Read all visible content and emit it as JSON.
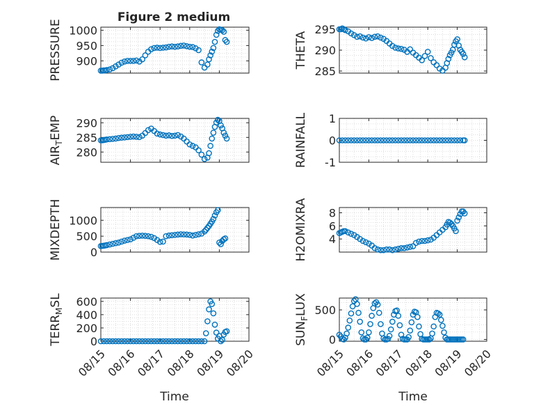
{
  "figure": {
    "title": "Figure 2 medium",
    "xlabel": "Time",
    "x_ticks": [
      "08/15",
      "08/16",
      "08/17",
      "08/18",
      "08/19",
      "08/20"
    ],
    "marker_color": "#0072BD"
  },
  "chart_data": [
    {
      "type": "scatter",
      "name": "pressure",
      "ylabel": "PRESSURE",
      "ylim": [
        860,
        1010
      ],
      "yticks": [
        900,
        950,
        1000
      ],
      "ytick_labels": [
        "900",
        "950",
        "1000"
      ],
      "title": "Figure 2 medium",
      "x": [
        0,
        0.05,
        0.1,
        0.15,
        0.2,
        0.3,
        0.4,
        0.5,
        0.6,
        0.7,
        0.8,
        0.9,
        1.0,
        1.1,
        1.2,
        1.3,
        1.4,
        1.5,
        1.6,
        1.7,
        1.8,
        1.9,
        2.0,
        2.1,
        2.2,
        2.3,
        2.4,
        2.5,
        2.6,
        2.7,
        2.8,
        2.9,
        3.0,
        3.1,
        3.2,
        3.3,
        3.4,
        3.5,
        3.6,
        3.65,
        3.7,
        3.75,
        3.8,
        3.85,
        3.9,
        3.95,
        4.0,
        4.05,
        4.1,
        4.15,
        4.2,
        4.25
      ],
      "y": [
        868,
        868,
        869,
        869,
        870,
        872,
        876,
        882,
        888,
        894,
        898,
        900,
        900,
        900,
        901,
        898,
        905,
        918,
        930,
        938,
        942,
        943,
        942,
        943,
        944,
        946,
        947,
        946,
        947,
        949,
        950,
        948,
        946,
        945,
        941,
        935,
        895,
        878,
        888,
        905,
        918,
        930,
        942,
        962,
        985,
        998,
        1003,
        1002,
        1000,
        995,
        968,
        962
      ]
    },
    {
      "type": "scatter",
      "name": "theta",
      "ylabel": "THETA",
      "ylim": [
        284.5,
        295.5
      ],
      "yticks": [
        285,
        290,
        295
      ],
      "ytick_labels": [
        "285",
        "290",
        "295"
      ],
      "x": [
        0,
        0.05,
        0.1,
        0.15,
        0.2,
        0.3,
        0.4,
        0.5,
        0.6,
        0.7,
        0.8,
        0.9,
        1.0,
        1.1,
        1.2,
        1.3,
        1.4,
        1.5,
        1.6,
        1.7,
        1.8,
        1.9,
        2.0,
        2.1,
        2.2,
        2.3,
        2.4,
        2.5,
        2.6,
        2.7,
        2.8,
        2.9,
        3.0,
        3.1,
        3.2,
        3.3,
        3.4,
        3.5,
        3.6,
        3.65,
        3.7,
        3.75,
        3.8,
        3.85,
        3.9,
        3.95,
        4.0,
        4.05,
        4.1,
        4.15,
        4.2,
        4.25
      ],
      "y": [
        295,
        295,
        295.2,
        295,
        294.8,
        294.5,
        294,
        293.6,
        293.2,
        293.3,
        293,
        292.8,
        293.1,
        292.9,
        293.2,
        293.3,
        293,
        292.7,
        292.2,
        291.6,
        291,
        290.6,
        290.4,
        290.3,
        290.1,
        289.6,
        290.2,
        289.4,
        288.8,
        288.2,
        287.6,
        288.6,
        289.6,
        288.1,
        287.1,
        286.4,
        285.6,
        285.1,
        285.8,
        286.9,
        287.9,
        288.8,
        289.4,
        290.1,
        291.3,
        292.1,
        292.6,
        291.1,
        290.1,
        289.6,
        289.1,
        288.3
      ]
    },
    {
      "type": "scatter",
      "name": "air_temp",
      "ylabel": "AIR_TEMP",
      "ylim": [
        276.5,
        291.5
      ],
      "yticks": [
        280,
        285,
        290
      ],
      "ytick_labels": [
        "280",
        "285",
        "290"
      ],
      "x": [
        0,
        0.05,
        0.1,
        0.15,
        0.2,
        0.3,
        0.4,
        0.5,
        0.6,
        0.7,
        0.8,
        0.9,
        1.0,
        1.1,
        1.2,
        1.3,
        1.4,
        1.5,
        1.6,
        1.7,
        1.8,
        1.9,
        2.0,
        2.1,
        2.2,
        2.3,
        2.4,
        2.5,
        2.6,
        2.7,
        2.8,
        2.9,
        3.0,
        3.1,
        3.2,
        3.3,
        3.4,
        3.5,
        3.6,
        3.65,
        3.7,
        3.75,
        3.8,
        3.85,
        3.9,
        3.95,
        4.0,
        4.05,
        4.1,
        4.15,
        4.2,
        4.25
      ],
      "y": [
        284,
        284,
        284.1,
        284.2,
        284.3,
        284.4,
        284.5,
        284.6,
        284.8,
        284.9,
        285,
        285.1,
        285.2,
        285.3,
        285.2,
        285.1,
        285.6,
        286.5,
        287.5,
        288,
        287.2,
        286.3,
        286,
        285.8,
        285.6,
        285.7,
        285.5,
        285.6,
        285.8,
        285.3,
        284.6,
        283.6,
        282.6,
        282.1,
        281.6,
        280.6,
        279.1,
        277.6,
        278.1,
        279.6,
        282.1,
        284.6,
        286.6,
        288.6,
        290.1,
        291,
        290.6,
        289.1,
        288.1,
        286.6,
        285.6,
        284.6
      ]
    },
    {
      "type": "scatter",
      "name": "rainfall",
      "ylabel": "RAINFALL",
      "ylim": [
        -1,
        1
      ],
      "yticks": [
        -1,
        0,
        1
      ],
      "ytick_labels": [
        "-1",
        "0",
        "1"
      ],
      "x": [
        0,
        0.1,
        0.2,
        0.3,
        0.4,
        0.5,
        0.6,
        0.7,
        0.8,
        0.9,
        1.0,
        1.1,
        1.2,
        1.3,
        1.4,
        1.5,
        1.6,
        1.7,
        1.8,
        1.9,
        2.0,
        2.1,
        2.2,
        2.3,
        2.4,
        2.5,
        2.6,
        2.7,
        2.8,
        2.9,
        3.0,
        3.1,
        3.2,
        3.3,
        3.4,
        3.5,
        3.6,
        3.7,
        3.8,
        3.9,
        4.0,
        4.1,
        4.2,
        4.25
      ],
      "y": [
        0,
        0,
        0,
        0,
        0,
        0,
        0,
        0,
        0,
        0,
        0,
        0,
        0,
        0,
        0,
        0,
        0,
        0,
        0,
        0,
        0,
        0,
        0,
        0,
        0,
        0,
        0,
        0,
        0,
        0,
        0,
        0,
        0,
        0,
        0,
        0,
        0,
        0,
        0,
        0,
        0,
        0,
        0,
        0
      ]
    },
    {
      "type": "scatter",
      "name": "mixdepth",
      "ylabel": "MIXDEPTH",
      "ylim": [
        0,
        1400
      ],
      "yticks": [
        0,
        500,
        1000
      ],
      "ytick_labels": [
        "0",
        "500",
        "1000"
      ],
      "x": [
        0,
        0.05,
        0.1,
        0.15,
        0.2,
        0.3,
        0.4,
        0.5,
        0.6,
        0.7,
        0.8,
        0.9,
        1.0,
        1.1,
        1.2,
        1.3,
        1.4,
        1.5,
        1.6,
        1.7,
        1.8,
        1.9,
        2.0,
        2.1,
        2.2,
        2.3,
        2.4,
        2.5,
        2.6,
        2.7,
        2.8,
        2.9,
        3.0,
        3.1,
        3.2,
        3.3,
        3.4,
        3.5,
        3.55,
        3.6,
        3.65,
        3.7,
        3.75,
        3.8,
        3.85,
        3.9,
        3.95,
        4.0,
        4.05,
        4.1,
        4.15,
        4.2
      ],
      "y": [
        190,
        195,
        200,
        210,
        220,
        240,
        260,
        280,
        300,
        330,
        360,
        380,
        400,
        450,
        500,
        510,
        515,
        510,
        500,
        480,
        440,
        380,
        320,
        330,
        500,
        520,
        530,
        540,
        550,
        560,
        555,
        550,
        540,
        520,
        540,
        560,
        580,
        650,
        700,
        760,
        820,
        890,
        960,
        1040,
        1150,
        1250,
        1320,
        300,
        250,
        350,
        400,
        430
      ]
    },
    {
      "type": "scatter",
      "name": "h2omixra",
      "ylabel": "H2OMIXRA",
      "ylim": [
        2,
        8.8
      ],
      "yticks": [
        4,
        6,
        8
      ],
      "ytick_labels": [
        "4",
        "6",
        "8"
      ],
      "x": [
        0,
        0.05,
        0.1,
        0.15,
        0.2,
        0.3,
        0.4,
        0.5,
        0.6,
        0.7,
        0.8,
        0.9,
        1.0,
        1.1,
        1.2,
        1.3,
        1.4,
        1.5,
        1.6,
        1.7,
        1.8,
        1.9,
        2.0,
        2.1,
        2.2,
        2.3,
        2.4,
        2.5,
        2.6,
        2.7,
        2.8,
        2.9,
        3.0,
        3.1,
        3.2,
        3.3,
        3.4,
        3.5,
        3.6,
        3.65,
        3.7,
        3.75,
        3.8,
        3.85,
        3.9,
        3.95,
        4.0,
        4.05,
        4.1,
        4.15,
        4.2,
        4.25
      ],
      "y": [
        4.9,
        5.0,
        5.1,
        5.2,
        5.2,
        5.0,
        4.8,
        4.6,
        4.3,
        4.0,
        3.7,
        3.5,
        3.3,
        3.0,
        2.6,
        2.4,
        2.3,
        2.3,
        2.4,
        2.4,
        2.3,
        2.4,
        2.5,
        2.6,
        2.6,
        2.7,
        2.8,
        2.9,
        3.4,
        3.6,
        3.7,
        3.7,
        3.8,
        3.9,
        4.2,
        4.6,
        5.0,
        5.4,
        5.8,
        6.2,
        6.6,
        6.5,
        6.3,
        6.0,
        5.6,
        5.2,
        6.8,
        7.3,
        7.8,
        8.2,
        8.2,
        7.9
      ]
    },
    {
      "type": "scatter",
      "name": "terr_msl",
      "ylabel": "TERR_MSL",
      "ylim": [
        0,
        650
      ],
      "yticks": [
        0,
        200,
        400,
        600
      ],
      "ytick_labels": [
        "0",
        "200",
        "400",
        "600"
      ],
      "x": [
        0,
        0.1,
        0.2,
        0.3,
        0.4,
        0.5,
        0.6,
        0.7,
        0.8,
        0.9,
        1.0,
        1.1,
        1.2,
        1.3,
        1.4,
        1.5,
        1.6,
        1.7,
        1.8,
        1.9,
        2.0,
        2.1,
        2.2,
        2.3,
        2.4,
        2.5,
        2.6,
        2.7,
        2.8,
        2.9,
        3.0,
        3.1,
        3.2,
        3.3,
        3.4,
        3.5,
        3.55,
        3.6,
        3.65,
        3.7,
        3.75,
        3.8,
        3.85,
        3.9,
        3.95,
        4.0,
        4.05,
        4.1,
        4.15,
        4.2,
        4.25
      ],
      "y": [
        0,
        0,
        0,
        0,
        0,
        0,
        0,
        0,
        0,
        0,
        0,
        0,
        0,
        0,
        0,
        0,
        0,
        0,
        0,
        0,
        0,
        0,
        0,
        0,
        0,
        0,
        0,
        0,
        0,
        0,
        0,
        0,
        0,
        0,
        0,
        0,
        120,
        300,
        480,
        600,
        560,
        420,
        250,
        130,
        40,
        80,
        0,
        20,
        100,
        140,
        150
      ]
    },
    {
      "type": "scatter",
      "name": "sun_flux",
      "ylabel": "SUN_FLUX",
      "ylim": [
        -30,
        700
      ],
      "yticks": [
        0,
        500
      ],
      "ytick_labels": [
        "0",
        "500"
      ],
      "x": [
        0,
        0.05,
        0.1,
        0.15,
        0.2,
        0.25,
        0.3,
        0.35,
        0.4,
        0.45,
        0.5,
        0.55,
        0.6,
        0.65,
        0.7,
        0.75,
        0.8,
        0.85,
        0.9,
        0.95,
        1.0,
        1.05,
        1.1,
        1.15,
        1.2,
        1.25,
        1.3,
        1.35,
        1.4,
        1.45,
        1.5,
        1.55,
        1.6,
        1.65,
        1.7,
        1.75,
        1.8,
        1.85,
        1.9,
        1.95,
        2.0,
        2.05,
        2.1,
        2.15,
        2.2,
        2.25,
        2.3,
        2.35,
        2.4,
        2.45,
        2.5,
        2.55,
        2.6,
        2.65,
        2.7,
        2.75,
        2.8,
        2.85,
        2.9,
        2.95,
        3.0,
        3.05,
        3.1,
        3.15,
        3.2,
        3.25,
        3.3,
        3.35,
        3.4,
        3.45,
        3.5,
        3.55,
        3.6,
        3.65,
        3.7,
        3.75,
        3.8,
        3.85,
        3.9,
        3.95,
        4.0,
        4.05,
        4.1,
        4.15,
        4.2
      ],
      "y": [
        80,
        50,
        10,
        0,
        30,
        100,
        200,
        320,
        440,
        560,
        650,
        680,
        600,
        450,
        300,
        120,
        20,
        0,
        0,
        30,
        120,
        260,
        400,
        530,
        610,
        630,
        590,
        450,
        260,
        100,
        20,
        0,
        0,
        10,
        60,
        170,
        300,
        420,
        480,
        490,
        400,
        240,
        80,
        10,
        0,
        0,
        0,
        40,
        150,
        290,
        420,
        470,
        460,
        380,
        220,
        90,
        10,
        0,
        0,
        0,
        0,
        0,
        20,
        100,
        220,
        380,
        450,
        440,
        420,
        330,
        230,
        120,
        30,
        0,
        0,
        0,
        0,
        0,
        0,
        0,
        0,
        0,
        0,
        0,
        0
      ]
    }
  ]
}
